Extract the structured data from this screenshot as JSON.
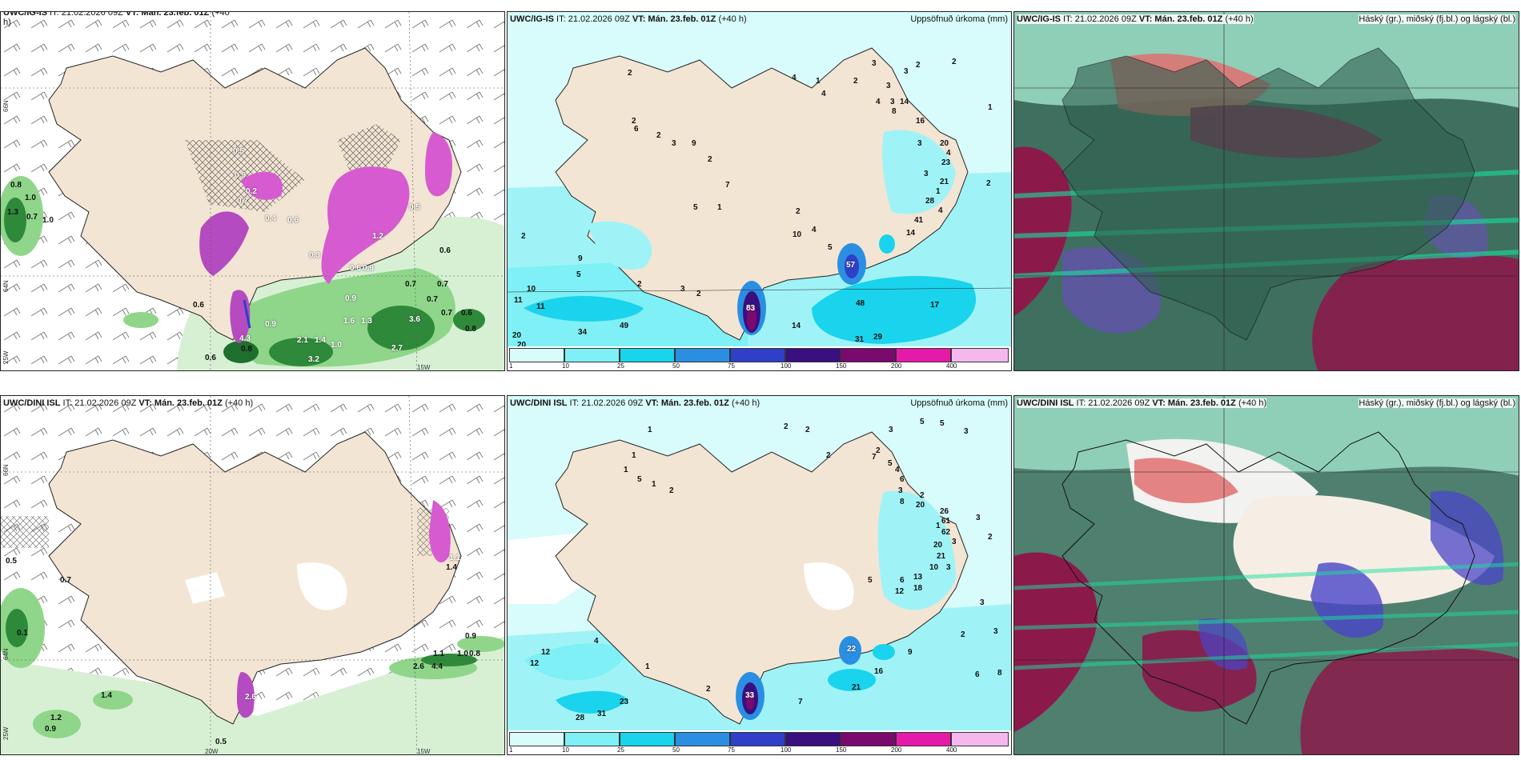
{
  "panels": {
    "p1": {
      "model": "UWC/IG-IS",
      "it": " IT: 21.02.2026 09Z ",
      "vt": "VT: Mán. 23.feb. 01Z",
      "lead": " (+40",
      "lead2": "h)",
      "right": ""
    },
    "p2": {
      "model": "UWC/IG-IS",
      "it": " IT: 21.02.2026 09Z ",
      "vt": "VT: Mán. 23.feb. 01Z",
      "lead": " (+40 h)",
      "right": "Uppsöfnuð úrkoma (mm)"
    },
    "p3": {
      "model": "UWC/IG-IS",
      "it": " IT: 21.02.2026 09Z ",
      "vt": "VT: Mán. 23.feb. 01Z",
      "lead": " (+40 h)",
      "right": "Háský (gr.), miðský (fj.bl.) og lágský (bl.)"
    },
    "p4": {
      "model": "UWC/DINI ISL",
      "it": " IT: 21.02.2026 09Z ",
      "vt": "VT: Mán. 23.feb. 01Z",
      "lead": " (+40 h)",
      "right": ""
    },
    "p5": {
      "model": "UWC/DINI ISL",
      "it": " IT: 21.02.2026 09Z ",
      "vt": "VT: Mán. 23.feb. 01Z",
      "lead": " (+40 h)",
      "right": "Uppsöfnuð úrkoma (mm)"
    },
    "p6": {
      "model": "UWC/DINI ISL",
      "it": " IT: 21.02.2026 09Z ",
      "vt": "VT: Mán. 23.feb. 01Z",
      "lead": " (+40 h)",
      "right": "Háský (gr.), miðský (fj.bl.) og lágský (bl.)"
    }
  },
  "axes": {
    "lat66": "66N",
    "lat64": "64N",
    "lon25": "25W",
    "lon20": "20W",
    "lon15": "15W"
  },
  "colorbar": {
    "ticks": [
      "1",
      "10",
      "25",
      "50",
      "75",
      "100",
      "150",
      "200",
      "400"
    ],
    "colors": [
      "#d8fbfb",
      "#7ff0f5",
      "#19d4ec",
      "#2a8fe2",
      "#2f3fc8",
      "#3a0f80",
      "#7a0a6e",
      "#e61aa8",
      "#f6b6ee"
    ]
  },
  "labels": {
    "p1": [
      "0.8",
      "1.0",
      "1.3",
      "0.7",
      "1.0",
      "0.6",
      "0.6",
      "0.7",
      "0.7",
      "0.7",
      "0.7",
      "0.8",
      "0.6",
      "1.6",
      "1.3",
      "3.6",
      "0.9",
      "2.1",
      "2.7",
      "1.0",
      "3.2",
      "0.6",
      "0.8",
      "4.3",
      "1.4",
      "0.9",
      "0.5",
      "0.9",
      "0.7",
      "0.4",
      "0.2",
      "0.6",
      "1.2",
      "0.6",
      "0.9",
      "0.5",
      "0.3"
    ],
    "p2": [
      "2",
      "4",
      "1",
      "4",
      "3",
      "3",
      "4",
      "3",
      "14",
      "2",
      "8",
      "2",
      "3",
      "2",
      "1",
      "16",
      "3",
      "20",
      "4",
      "23",
      "3",
      "21",
      "2",
      "1",
      "2",
      "6",
      "2",
      "3",
      "9",
      "2",
      "7",
      "28",
      "5",
      "1",
      "2",
      "41",
      "4",
      "14",
      "10",
      "2",
      "4",
      "5",
      "9",
      "5",
      "2",
      "3",
      "2",
      "10",
      "11",
      "11",
      "34",
      "49",
      "20",
      "20",
      "14",
      "48",
      "17",
      "31",
      "29",
      "83",
      "57"
    ],
    "p4": [
      "0.5",
      "0.1",
      "1.4",
      "1.2",
      "0.9",
      "0.5",
      "2.6",
      "0.9",
      "1.1",
      "1.0",
      "0.8",
      "2.6",
      "4.4",
      "1.4",
      "0.7",
      "1.1"
    ],
    "p5": [
      "1",
      "2",
      "2",
      "1",
      "3",
      "5",
      "5",
      "2",
      "3",
      "2",
      "1",
      "7",
      "5",
      "4",
      "6",
      "3",
      "8",
      "2",
      "5",
      "1",
      "2",
      "20",
      "3",
      "26",
      "1",
      "61",
      "2",
      "62",
      "3",
      "20",
      "21",
      "10",
      "3",
      "13",
      "6",
      "18",
      "12",
      "3",
      "5",
      "12",
      "12",
      "4",
      "1",
      "23",
      "28",
      "31",
      "16",
      "21",
      "9",
      "6",
      "8",
      "2",
      "7",
      "3",
      "2",
      "22",
      "33"
    ]
  },
  "colors": {
    "land": "#f5e8d8",
    "coast": "#222222"
  }
}
